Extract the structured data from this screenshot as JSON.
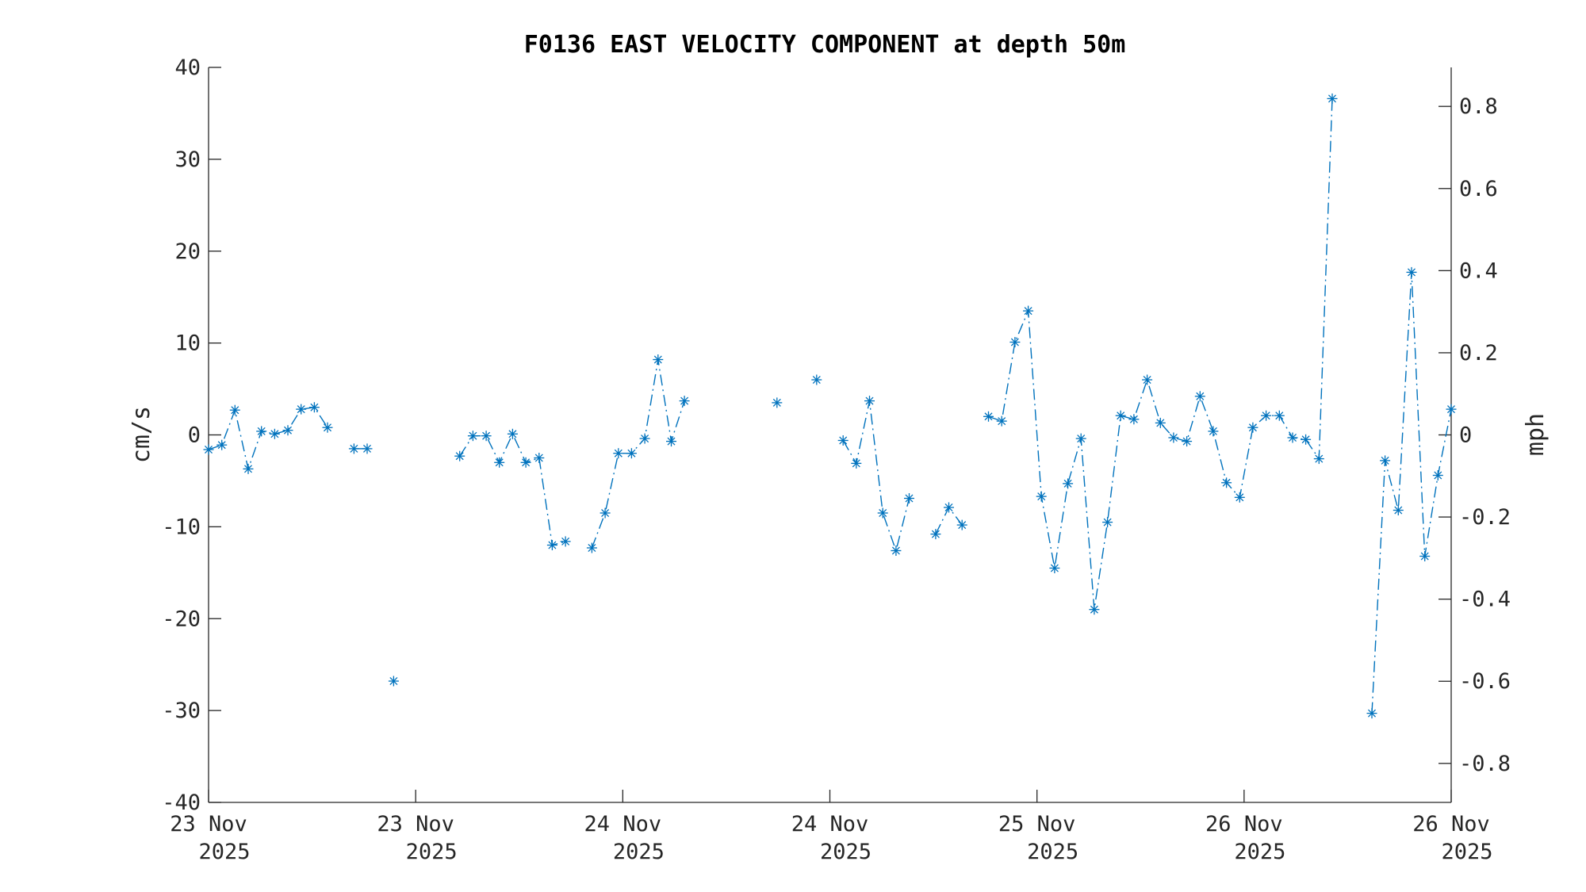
{
  "chart_data": {
    "type": "line",
    "title": "F0136 EAST VELOCITY COMPONENT at depth 50m",
    "ylabel": "cm/s",
    "ylabel_right": "mph",
    "ylim": [
      -40,
      40
    ],
    "ylim_right": [
      -0.895,
      0.895
    ],
    "yticks": [
      "40",
      "30",
      "20",
      "10",
      "0",
      "-10",
      "-20",
      "-30",
      "-40"
    ],
    "yticks_right": [
      "0.8",
      "0.6",
      "0.4",
      "0.2",
      "0",
      "-0.2",
      "-0.4",
      "-0.6",
      "-0.8"
    ],
    "xticks": [
      {
        "line1": "23 Nov",
        "line2": "2025"
      },
      {
        "line1": "23 Nov",
        "line2": "2025"
      },
      {
        "line1": "24 Nov",
        "line2": "2025"
      },
      {
        "line1": "24 Nov",
        "line2": "2025"
      },
      {
        "line1": "25 Nov",
        "line2": "2025"
      },
      {
        "line1": "26 Nov",
        "line2": "2025"
      },
      {
        "line1": "26 Nov",
        "line2": "2025"
      }
    ],
    "marker": "asterisk",
    "line_style": "dash-dot",
    "color": "#0072BD",
    "grid": false,
    "series": [
      {
        "values": [
          -1.6,
          -1.1,
          2.7,
          -3.7,
          0.4,
          0.1,
          0.5,
          2.8,
          3.0,
          0.8,
          null,
          -1.5,
          -1.5,
          null,
          -26.8,
          null,
          null,
          null,
          null,
          -2.3,
          -0.1,
          -0.1,
          -3.0,
          0.1,
          -3.0,
          -2.5,
          -12.0,
          -11.6,
          null,
          -12.3,
          -8.5,
          -2.0,
          -2.0,
          -0.4,
          8.2,
          -0.7,
          3.7,
          null,
          null,
          null,
          null,
          null,
          null,
          3.5,
          null,
          null,
          6.0,
          null,
          -0.6,
          -3.1,
          3.7,
          -8.5,
          -12.6,
          -6.9,
          null,
          -10.8,
          -7.9,
          -9.8,
          null,
          2.0,
          1.5,
          10.1,
          13.5,
          -6.7,
          -14.5,
          -5.3,
          -0.4,
          -19.0,
          -9.5,
          2.1,
          1.7,
          6.0,
          1.3,
          -0.3,
          -0.7,
          4.2,
          0.4,
          -5.2,
          -6.8,
          0.8,
          2.1,
          2.1,
          -0.3,
          -0.5,
          -2.6,
          36.6,
          null,
          null,
          -30.3,
          -2.8,
          -8.2,
          17.7,
          -13.2,
          -4.4,
          2.8
        ]
      }
    ]
  }
}
